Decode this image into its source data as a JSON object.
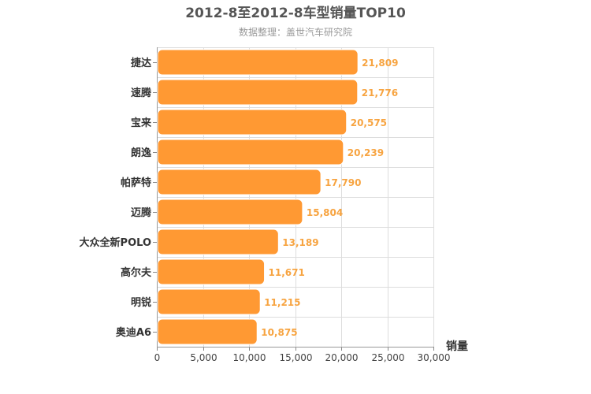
{
  "chart_data": {
    "type": "bar",
    "orientation": "horizontal",
    "title": "2012-8至2012-8车型销量TOP10",
    "subtitle": "数据整理：盖世汽车研究院",
    "xlabel": "销量",
    "ylabel": "",
    "xlim": [
      0,
      30000
    ],
    "x_ticks": [
      "0",
      "5,000",
      "10,000",
      "15,000",
      "20,000",
      "25,000",
      "30,000"
    ],
    "grid": true,
    "legend": "none",
    "categories": [
      "捷达",
      "速腾",
      "宝来",
      "朗逸",
      "帕萨特",
      "迈腾",
      "大众全新POLO",
      "高尔夫",
      "明锐",
      "奥迪A6"
    ],
    "values": [
      21809,
      21776,
      20575,
      20239,
      17790,
      15804,
      13189,
      11671,
      11215,
      10875
    ],
    "value_labels": [
      "21,809",
      "21,776",
      "20,575",
      "20,239",
      "17,790",
      "15,804",
      "13,189",
      "11,671",
      "11,215",
      "10,875"
    ],
    "bar_color": "#ff9933",
    "label_color": "#f7a441"
  }
}
